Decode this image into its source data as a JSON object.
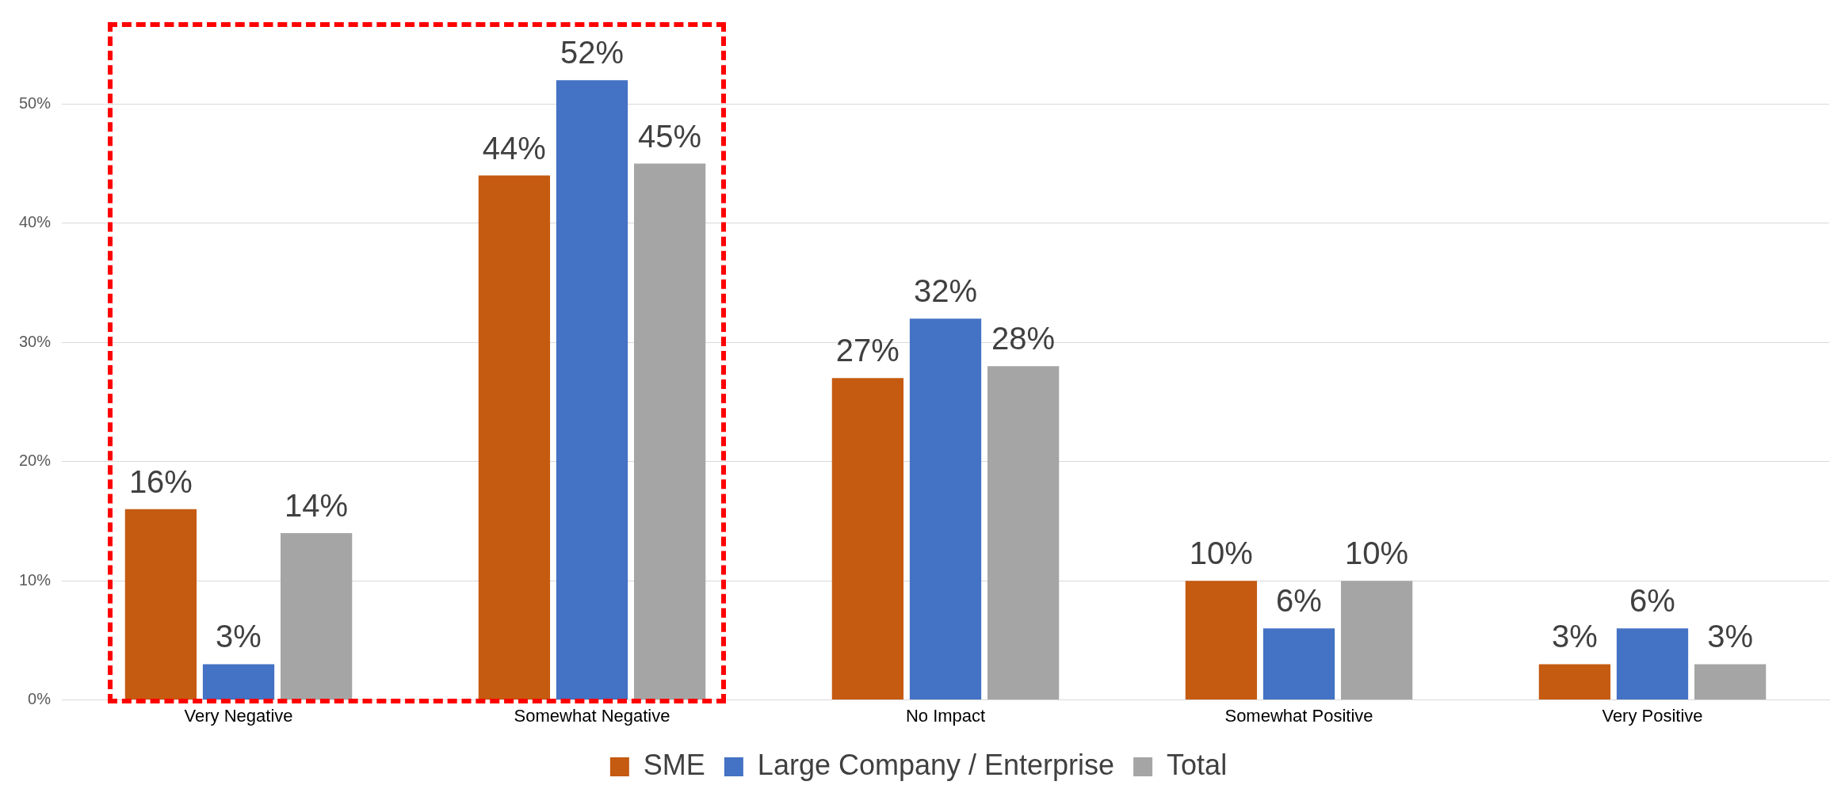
{
  "chart_data": {
    "type": "bar",
    "categories": [
      "Very Negative",
      "Somewhat Negative",
      "No Impact",
      "Somewhat Positive",
      "Very Positive"
    ],
    "series": [
      {
        "name": "SME",
        "color": "#c55a11",
        "values": [
          16,
          44,
          27,
          10,
          3
        ],
        "value_labels": [
          "16%",
          "44%",
          "27%",
          "10%",
          "3%"
        ]
      },
      {
        "name": "Large Company / Enterprise",
        "color": "#4472c4",
        "values": [
          3,
          52,
          32,
          6,
          6
        ],
        "value_labels": [
          "3%",
          "52%",
          "32%",
          "6%",
          "6%"
        ]
      },
      {
        "name": "Total",
        "color": "#a5a5a5",
        "values": [
          14,
          45,
          28,
          10,
          3
        ],
        "value_labels": [
          "14%",
          "45%",
          "28%",
          "10%",
          "3%"
        ]
      }
    ],
    "ylim": [
      0,
      57
    ],
    "yticks": [
      {
        "value": 0,
        "label": "0%"
      },
      {
        "value": 10,
        "label": "10%"
      },
      {
        "value": 20,
        "label": "20%"
      },
      {
        "value": 30,
        "label": "30%"
      },
      {
        "value": 40,
        "label": "40%"
      },
      {
        "value": 50,
        "label": "50%"
      }
    ],
    "grid": "y",
    "legend": "bottom"
  }
}
